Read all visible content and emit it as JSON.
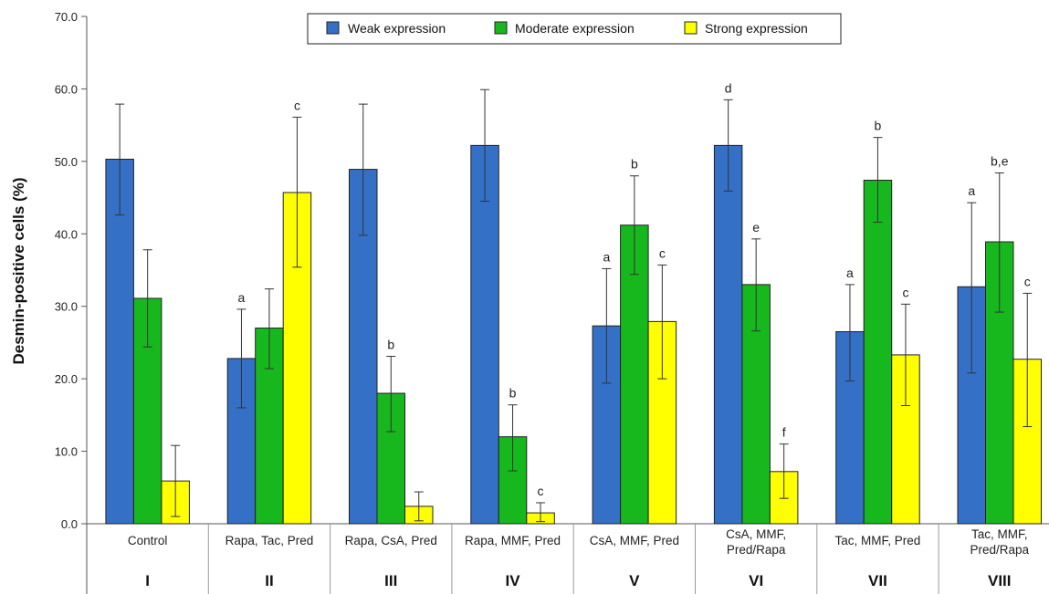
{
  "chart_data": {
    "type": "bar",
    "ylabel": "Desmin-positive cells (%)",
    "ylim": [
      0,
      70
    ],
    "yticks": [
      "0.0",
      "10.0",
      "20.0",
      "30.0",
      "40.0",
      "50.0",
      "60.0",
      "70.0"
    ],
    "grid": false,
    "legend_position": "top",
    "categories": [
      "Control",
      "Rapa, Tac, Pred",
      "Rapa, CsA, Pred",
      "Rapa, MMF, Pred",
      "CsA, MMF, Pred",
      "CsA, MMF,\nPred/Rapa",
      "Tac, MMF, Pred",
      "Tac, MMF,\nPred/Rapa"
    ],
    "groups": [
      "I",
      "II",
      "III",
      "IV",
      "V",
      "VI",
      "VII",
      "VIII"
    ],
    "series": [
      {
        "name": "Weak expression",
        "color": "#3470c6",
        "values": [
          50.3,
          22.8,
          48.9,
          52.2,
          27.3,
          52.2,
          26.5,
          32.7
        ],
        "error_low": [
          42.6,
          16.0,
          39.8,
          44.5,
          19.4,
          45.9,
          19.7,
          20.8
        ],
        "error_high": [
          57.9,
          29.6,
          57.9,
          59.9,
          35.2,
          58.5,
          33.0,
          44.3
        ],
        "annotations": [
          "",
          "a",
          "",
          "",
          "a",
          "d",
          "a",
          "a"
        ]
      },
      {
        "name": "Moderate expression",
        "color": "#16b81e",
        "values": [
          31.1,
          27.0,
          18.0,
          12.0,
          41.2,
          33.0,
          47.4,
          38.9
        ],
        "error_low": [
          24.4,
          21.4,
          12.7,
          7.3,
          34.4,
          26.6,
          41.6,
          29.2
        ],
        "error_high": [
          37.8,
          32.4,
          23.1,
          16.4,
          48.0,
          39.3,
          53.3,
          48.4
        ],
        "annotations": [
          "",
          "",
          "b",
          "b",
          "b",
          "e",
          "b",
          "b,e"
        ]
      },
      {
        "name": "Strong expression",
        "color": "#ffff00",
        "values": [
          5.9,
          45.7,
          2.4,
          1.5,
          27.9,
          7.2,
          23.3,
          22.7
        ],
        "error_low": [
          1.0,
          35.4,
          0.4,
          0.3,
          20.0,
          3.5,
          16.3,
          13.4
        ],
        "error_high": [
          10.8,
          56.1,
          4.4,
          2.9,
          35.7,
          11.0,
          30.3,
          31.8
        ],
        "annotations": [
          "",
          "c",
          "",
          "c",
          "c",
          "f",
          "c",
          "c"
        ]
      }
    ]
  }
}
